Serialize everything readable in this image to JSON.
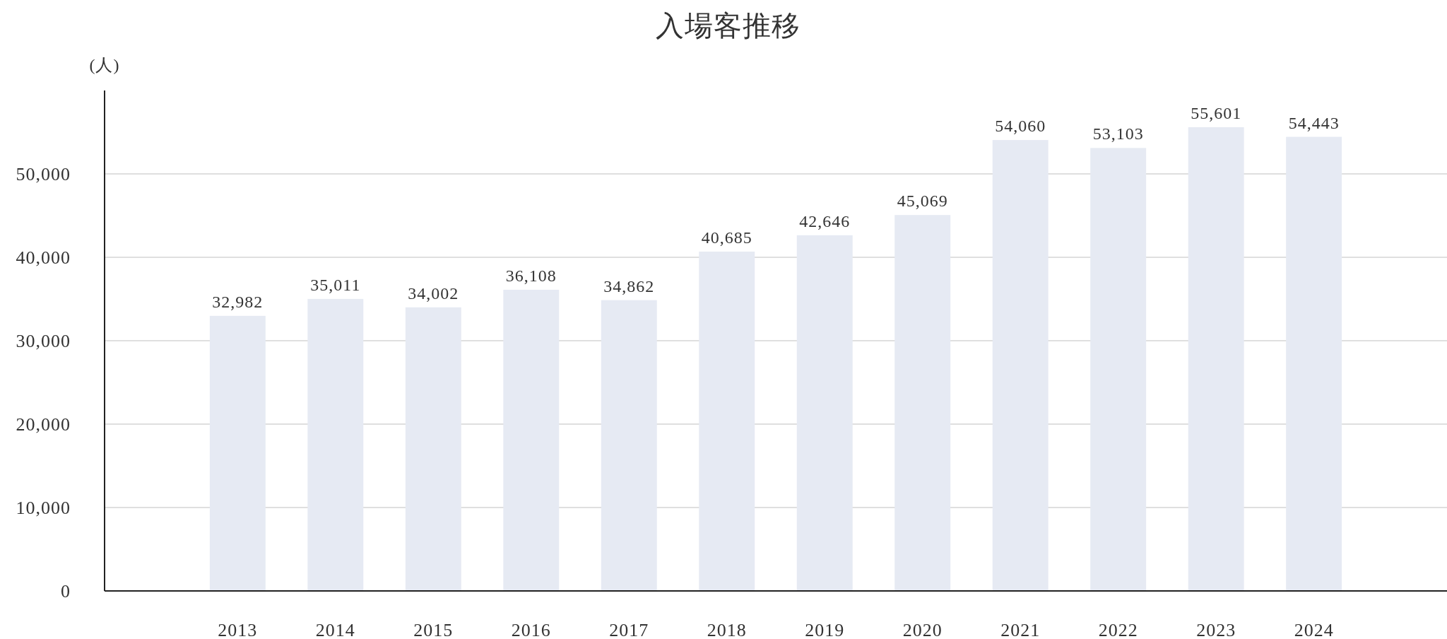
{
  "chart_data": {
    "type": "bar",
    "title": "入場客推移",
    "ylabel": "(人)",
    "categories": [
      "2013",
      "2014",
      "2015",
      "2016",
      "2017",
      "2018",
      "2019",
      "2020",
      "2021",
      "2022",
      "2023",
      "2024"
    ],
    "values": [
      32982,
      35011,
      34002,
      36108,
      34862,
      40685,
      42646,
      45069,
      54060,
      53103,
      55601,
      54443
    ],
    "value_labels": [
      "32,982",
      "35,011",
      "34,002",
      "36,108",
      "34,862",
      "40,685",
      "42,646",
      "45,069",
      "54,060",
      "53,103",
      "55,601",
      "54,443"
    ],
    "color": "#e6eaf3",
    "ylim": [
      0,
      60000
    ],
    "yticks": [
      {
        "value": 0,
        "label": "0"
      },
      {
        "value": 10000,
        "label": "10,000"
      },
      {
        "value": 20000,
        "label": "20,000"
      },
      {
        "value": 30000,
        "label": "30,000"
      },
      {
        "value": 40000,
        "label": "40,000"
      },
      {
        "value": 50000,
        "label": "50,000"
      }
    ],
    "grid": "y"
  }
}
